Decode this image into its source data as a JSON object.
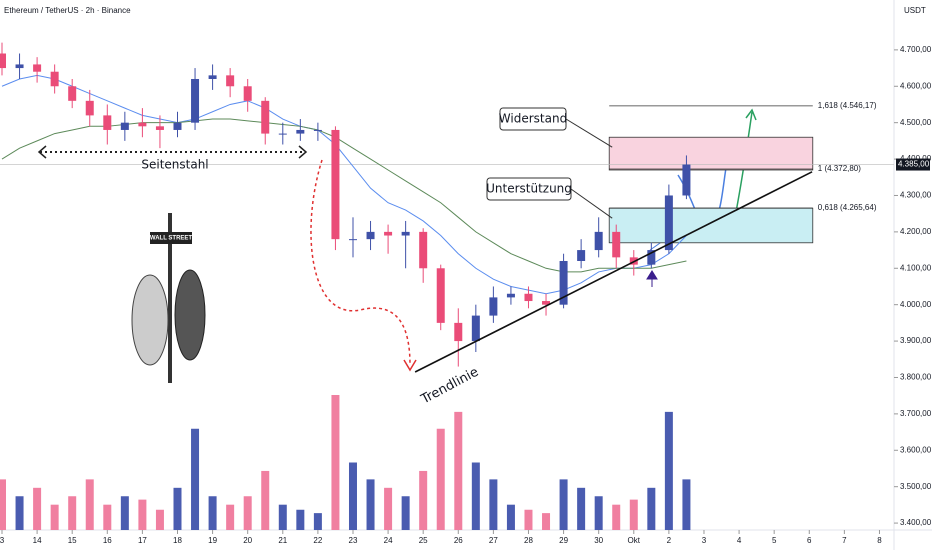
{
  "chart_data": {
    "type": "candlestick",
    "title": "Ethereum / TetherUS · 2h · Binance",
    "currency": "USDT",
    "x": [
      0,
      0.5,
      1,
      1.5,
      2,
      2.5,
      3,
      3.5,
      4,
      4.5,
      5,
      5.5,
      6,
      6.5,
      7,
      7.5,
      8,
      8.5,
      9,
      9.5,
      10,
      10.5,
      11,
      11.5,
      12,
      12.5,
      13,
      13.5,
      14,
      14.5,
      15,
      15.5,
      16,
      16.5,
      17,
      17.5,
      18,
      18.5,
      19,
      19.5
    ],
    "open": [
      4690,
      4650,
      4660,
      4640,
      4600,
      4560,
      4520,
      4480,
      4500,
      4490,
      4480,
      4500,
      4620,
      4630,
      4600,
      4560,
      4470,
      4470,
      4480,
      4480,
      4180,
      4180,
      4200,
      4190,
      4200,
      4100,
      3950,
      3900,
      3970,
      4020,
      4030,
      4010,
      4000,
      4120,
      4150,
      4200,
      4130,
      4110,
      4150,
      4300
    ],
    "high": [
      4720,
      4690,
      4680,
      4660,
      4620,
      4590,
      4550,
      4530,
      4540,
      4520,
      4530,
      4650,
      4660,
      4650,
      4620,
      4570,
      4500,
      4510,
      4500,
      4490,
      4240,
      4230,
      4220,
      4230,
      4210,
      4110,
      3990,
      4000,
      4050,
      4050,
      4050,
      4030,
      4140,
      4180,
      4240,
      4220,
      4150,
      4170,
      4330,
      4410
    ],
    "low": [
      4630,
      4620,
      4610,
      4580,
      4540,
      4490,
      4440,
      4450,
      4460,
      4430,
      4460,
      4480,
      4590,
      4570,
      4530,
      4440,
      4440,
      4450,
      4450,
      4150,
      4130,
      4150,
      4140,
      4100,
      4060,
      3930,
      3830,
      3870,
      3950,
      4000,
      3990,
      3970,
      3990,
      4100,
      4130,
      4100,
      4080,
      4100,
      4140,
      4290
    ],
    "close": [
      4650,
      4660,
      4640,
      4600,
      4560,
      4520,
      4480,
      4500,
      4490,
      4480,
      4500,
      4620,
      4630,
      4600,
      4560,
      4470,
      4470,
      4480,
      4480,
      4180,
      4180,
      4200,
      4190,
      4200,
      4100,
      3950,
      3900,
      3970,
      4020,
      4030,
      4010,
      4000,
      4120,
      4150,
      4200,
      4130,
      4110,
      4150,
      4300,
      4385
    ],
    "volume": [
      30,
      20,
      25,
      15,
      20,
      30,
      15,
      20,
      18,
      12,
      25,
      60,
      20,
      15,
      20,
      35,
      15,
      12,
      10,
      80,
      40,
      30,
      25,
      20,
      35,
      60,
      70,
      40,
      30,
      15,
      12,
      10,
      30,
      25,
      20,
      15,
      18,
      25,
      70,
      30
    ],
    "up_color": "#3f51a8",
    "down_color": "#ea4c78",
    "volume_up_color": "#4a5cb0",
    "volume_down_color": "#f07fa0",
    "moving_averages": [
      {
        "color": "#5b8def",
        "values": [
          4600,
          4620,
          4630,
          4620,
          4600,
          4580,
          4560,
          4540,
          4520,
          4510,
          4500,
          4510,
          4530,
          4550,
          4560,
          4540,
          4510,
          4490,
          4480,
          4440,
          4380,
          4320,
          4280,
          4260,
          4230,
          4190,
          4140,
          4100,
          4070,
          4050,
          4040,
          4030,
          4040,
          4060,
          4090,
          4100,
          4100,
          4110,
          4140,
          4190
        ]
      },
      {
        "color": "#5d8a5a",
        "values": [
          4400,
          4430,
          4450,
          4470,
          4480,
          4490,
          4490,
          4495,
          4500,
          4500,
          4500,
          4505,
          4510,
          4510,
          4505,
          4500,
          4495,
          4490,
          4480,
          4460,
          4430,
          4400,
          4370,
          4340,
          4310,
          4280,
          4240,
          4200,
          4170,
          4140,
          4120,
          4100,
          4090,
          4090,
          4100,
          4100,
          4100,
          4100,
          4110,
          4120
        ]
      }
    ],
    "xlim": [
      0,
      25.3
    ],
    "ylim": [
      3381,
      4837
    ],
    "xticks": [
      {
        "value": 0,
        "label": "3"
      },
      {
        "value": 1,
        "label": "14"
      },
      {
        "value": 2,
        "label": "15"
      },
      {
        "value": 3,
        "label": "16"
      },
      {
        "value": 4,
        "label": "17"
      },
      {
        "value": 5,
        "label": "18"
      },
      {
        "value": 6,
        "label": "19"
      },
      {
        "value": 7,
        "label": "20"
      },
      {
        "value": 8,
        "label": "21"
      },
      {
        "value": 9,
        "label": "22"
      },
      {
        "value": 10,
        "label": "23"
      },
      {
        "value": 11,
        "label": "24"
      },
      {
        "value": 12,
        "label": "25"
      },
      {
        "value": 13,
        "label": "26"
      },
      {
        "value": 14,
        "label": "27"
      },
      {
        "value": 15,
        "label": "28"
      },
      {
        "value": 16,
        "label": "29"
      },
      {
        "value": 17,
        "label": "30"
      },
      {
        "value": 18,
        "label": "Okt"
      },
      {
        "value": 19,
        "label": "2"
      },
      {
        "value": 20,
        "label": "3"
      },
      {
        "value": 21,
        "label": "4"
      },
      {
        "value": 22,
        "label": "5"
      },
      {
        "value": 23,
        "label": "6"
      },
      {
        "value": 24,
        "label": "7"
      },
      {
        "value": 25,
        "label": "8"
      }
    ],
    "yticks": [
      {
        "value": 3400,
        "label": "3.400,00"
      },
      {
        "value": 3500,
        "label": "3.500,00"
      },
      {
        "value": 3600,
        "label": "3.600,00"
      },
      {
        "value": 3700,
        "label": "3.700,00"
      },
      {
        "value": 3800,
        "label": "3.800,00"
      },
      {
        "value": 3900,
        "label": "3.900,00"
      },
      {
        "value": 4000,
        "label": "4.000,00"
      },
      {
        "value": 4100,
        "label": "4.100,00"
      },
      {
        "value": 4200,
        "label": "4.200,00"
      },
      {
        "value": 4300,
        "label": "4.300,00"
      },
      {
        "value": 4400,
        "label": "4.400,00"
      },
      {
        "value": 4500,
        "label": "4.500,00"
      },
      {
        "value": 4600,
        "label": "4.600,00"
      },
      {
        "value": 4700,
        "label": "4.700,00"
      }
    ],
    "last_price": {
      "value": 4385,
      "label": "4.385,00"
    },
    "fib_levels": [
      {
        "value": 4546.17,
        "label": "1,618 (4.546,17)"
      },
      {
        "value": 4372.8,
        "label": "1 (4.372,80)"
      },
      {
        "value": 4265.64,
        "label": "0,618 (4.265,64)"
      }
    ],
    "fib_x": [
      17.3,
      23.1
    ],
    "zones": [
      {
        "label": "Widerstand",
        "low": 4370,
        "high": 4460,
        "color": "#f9d3df"
      },
      {
        "label": "Unterstützung",
        "low": 4170,
        "high": 4265,
        "color": "#c9eef3"
      }
    ],
    "trendline": {
      "x": [
        11.77,
        23.08
      ],
      "y": [
        3815,
        4365
      ],
      "label": "Trendlinie"
    },
    "range_label": "Seitenstahl",
    "sign_text": "WALL STREET"
  }
}
